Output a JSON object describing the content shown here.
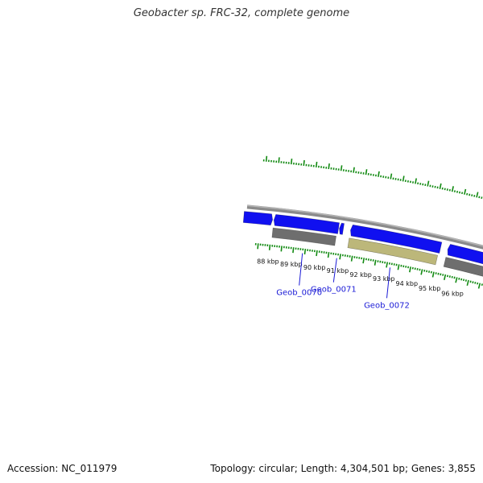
{
  "header": {
    "title": "Geobacter sp. FRC-32, complete genome"
  },
  "footer": {
    "accession": "Accession: NC_011979",
    "topology": "Topology: circular; Length: 4,304,501 bp; Genes: 3,855"
  },
  "map": {
    "start_kbp": 87.5,
    "end_kbp": 96.8,
    "scale_labels": [
      "88 kbp",
      "89 kbp",
      "90 kbp",
      "91 kbp",
      "92 kbp",
      "93 kbp",
      "94 kbp",
      "95 kbp",
      "96 kbp"
    ],
    "genes": [
      {
        "name": "",
        "start_kbp": 86.8,
        "end_kbp": 88.0,
        "strand": "forward",
        "feature_color": ""
      },
      {
        "name": "Geob_0070",
        "start_kbp": 88.05,
        "end_kbp": 90.75,
        "strand": "reverse",
        "feature_color": "#6e6e6e"
      },
      {
        "name": "Geob_0071",
        "start_kbp": 90.78,
        "end_kbp": 90.95,
        "strand": "reverse",
        "feature_color": ""
      },
      {
        "name": "Geob_0072",
        "start_kbp": 91.25,
        "end_kbp": 95.05,
        "strand": "reverse",
        "feature_color": "#bcb77a"
      },
      {
        "name": "",
        "start_kbp": 95.35,
        "end_kbp": 97.2,
        "strand": "reverse",
        "feature_color": "#6e6e6e"
      }
    ],
    "colors": {
      "backbone": "#8a8a8a",
      "cds": "#1010f0",
      "tick": "#128a12",
      "label_line": "#1a1ad6"
    }
  }
}
